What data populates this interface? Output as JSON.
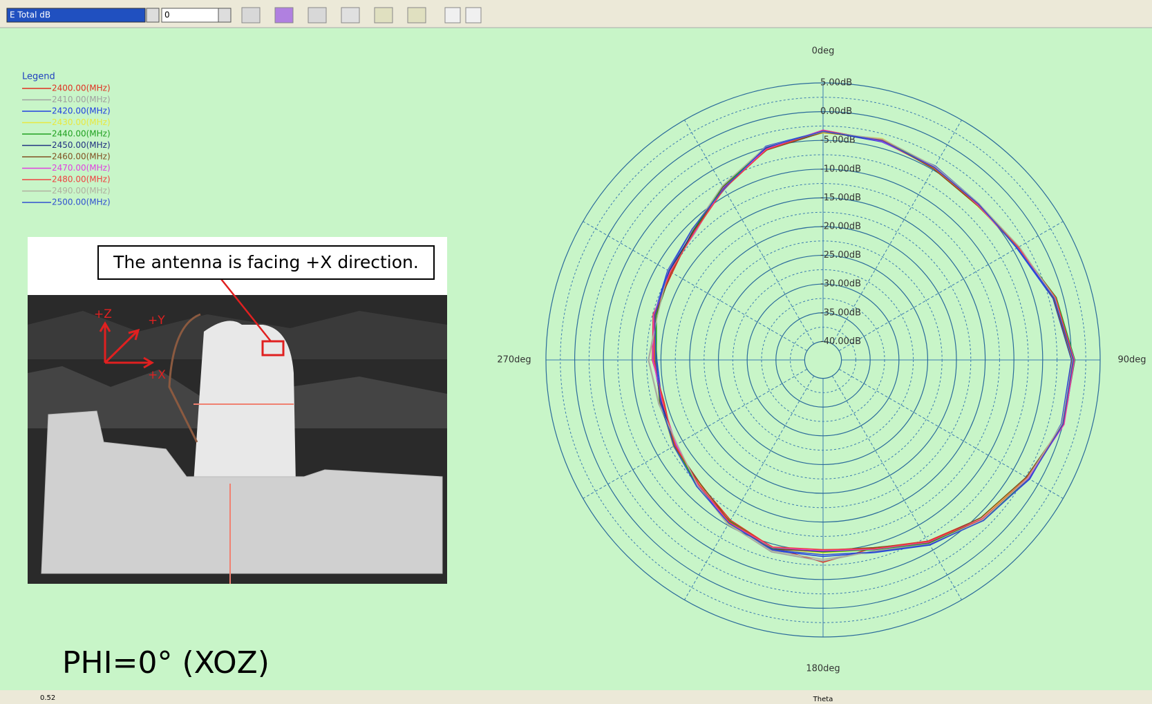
{
  "toolbar": {
    "field": "E Total dB",
    "value": "0"
  },
  "legend_title": "Legend",
  "chart_data": {
    "type": "polar",
    "theta": [
      0,
      15,
      30,
      45,
      60,
      75,
      90,
      105,
      120,
      135,
      150,
      165,
      180,
      195,
      210,
      225,
      240,
      255,
      270,
      285,
      300,
      315,
      330,
      345
    ],
    "thetaticks": [
      {
        "value": 0,
        "label": "0deg"
      },
      {
        "value": 90,
        "label": "90deg"
      },
      {
        "value": 180,
        "label": "180deg"
      },
      {
        "value": 270,
        "label": "270deg"
      }
    ],
    "theta_label": "Theta",
    "rlim": [
      -43.2,
      5
    ],
    "rticks": [
      {
        "value": 5,
        "label": "5.00dB"
      },
      {
        "value": 0,
        "label": "0.00dB"
      },
      {
        "value": -5,
        "label": "-5.00dB"
      },
      {
        "value": -10,
        "label": "-10.00dB"
      },
      {
        "value": -15,
        "label": "-15.00dB"
      },
      {
        "value": -20,
        "label": "-20.00dB"
      },
      {
        "value": -25,
        "label": "-25.00dB"
      },
      {
        "value": -30,
        "label": "-30.00dB"
      },
      {
        "value": -35,
        "label": "-35.00dB"
      },
      {
        "value": -40,
        "label": "-40.00dB"
      }
    ],
    "series": [
      {
        "name": "2400.00(MHz)",
        "color": "#e03020",
        "values": [
          -3.2,
          -3.8,
          -4.6,
          -5.2,
          -4.1,
          -1.3,
          0.5,
          0.1,
          -2.2,
          -4.3,
          -6.8,
          -9.3,
          -8.0,
          -9.4,
          -11.0,
          -12.8,
          -13.2,
          -14.6,
          -13.5,
          -12.6,
          -12.9,
          -11.2,
          -8.8,
          -5.3
        ]
      },
      {
        "name": "2410.00(MHz)",
        "color": "#a0a0a0",
        "values": [
          -3.6,
          -3.4,
          -4.4,
          -5.1,
          -3.8,
          -1.6,
          0.2,
          -0.2,
          -2.0,
          -4.1,
          -6.3,
          -8.8,
          -8.2,
          -8.6,
          -10.2,
          -12.4,
          -13.8,
          -13.6,
          -12.8,
          -13.3,
          -12.2,
          -11.8,
          -8.3,
          -5.2
        ]
      },
      {
        "name": "2420.00(MHz)",
        "color": "#2040e0",
        "values": [
          -3.4,
          -3.9,
          -4.2,
          -4.8,
          -4.3,
          -1.8,
          0.0,
          -0.3,
          -1.7,
          -3.8,
          -6.0,
          -8.5,
          -9.0,
          -8.9,
          -10.6,
          -12.2,
          -13.5,
          -14.2,
          -14.3,
          -12.8,
          -12.0,
          -11.0,
          -8.9,
          -4.7
        ]
      },
      {
        "name": "2430.00(MHz)",
        "color": "#e8e840",
        "values": [
          -3.7,
          -3.3,
          -4.7,
          -5.3,
          -3.9,
          -1.4,
          0.4,
          0.2,
          -2.3,
          -4.2,
          -6.6,
          -9.1,
          -9.6,
          -9.2,
          -10.3,
          -12.7,
          -13.1,
          -14.0,
          -13.9,
          -13.1,
          -12.4,
          -11.6,
          -8.6,
          -4.9
        ]
      },
      {
        "name": "2440.00(MHz)",
        "color": "#20a020",
        "values": [
          -3.3,
          -3.6,
          -4.3,
          -4.9,
          -4.0,
          -1.2,
          0.6,
          0.1,
          -1.9,
          -3.9,
          -6.4,
          -9.0,
          -9.8,
          -9.3,
          -10.8,
          -12.3,
          -13.4,
          -13.8,
          -14.2,
          -13.2,
          -12.6,
          -11.3,
          -8.4,
          -5.0
        ]
      },
      {
        "name": "2450.00(MHz)",
        "color": "#203080",
        "values": [
          -3.5,
          -3.7,
          -4.5,
          -5.0,
          -4.2,
          -1.5,
          0.3,
          -0.1,
          -2.1,
          -4.0,
          -6.7,
          -9.2,
          -9.9,
          -9.1,
          -10.4,
          -12.6,
          -13.6,
          -14.1,
          -13.7,
          -12.9,
          -12.3,
          -11.4,
          -8.7,
          -5.1
        ]
      },
      {
        "name": "2460.00(MHz)",
        "color": "#805020",
        "values": [
          -3.6,
          -3.5,
          -4.8,
          -5.2,
          -3.9,
          -1.7,
          0.1,
          0.0,
          -2.4,
          -4.4,
          -6.5,
          -9.4,
          -10.1,
          -9.0,
          -10.7,
          -12.9,
          -13.3,
          -13.9,
          -14.0,
          -13.0,
          -12.7,
          -11.5,
          -8.5,
          -5.4
        ]
      },
      {
        "name": "2470.00(MHz)",
        "color": "#e040e0",
        "values": [
          -3.2,
          -3.8,
          -4.4,
          -5.1,
          -4.1,
          -1.4,
          0.5,
          0.2,
          -2.0,
          -4.1,
          -6.6,
          -9.1,
          -10.0,
          -9.4,
          -10.5,
          -12.5,
          -13.7,
          -14.3,
          -13.6,
          -12.7,
          -12.5,
          -11.7,
          -8.6,
          -5.2
        ]
      },
      {
        "name": "2480.00(MHz)",
        "color": "#f04040",
        "values": [
          -3.3,
          -3.6,
          -4.6,
          -5.0,
          -4.0,
          -1.3,
          0.4,
          0.1,
          -2.2,
          -4.0,
          -6.7,
          -9.2,
          -10.2,
          -9.5,
          -10.6,
          -12.6,
          -13.5,
          -14.4,
          -13.8,
          -12.8,
          -12.6,
          -11.6,
          -8.8,
          -5.3
        ]
      },
      {
        "name": "2490.00(MHz)",
        "color": "#b0b0a0",
        "values": [
          -3.5,
          -3.4,
          -4.3,
          -4.8,
          -3.8,
          -1.5,
          0.2,
          -0.2,
          -2.1,
          -3.9,
          -6.2,
          -8.7,
          -8.5,
          -8.8,
          -10.1,
          -12.3,
          -13.9,
          -13.7,
          -12.9,
          -13.4,
          -12.1,
          -11.1,
          -8.2,
          -4.8
        ]
      },
      {
        "name": "2500.00(MHz)",
        "color": "#3050d0",
        "values": [
          -3.4,
          -3.7,
          -4.5,
          -4.9,
          -4.2,
          -1.6,
          0.3,
          0.0,
          -1.8,
          -3.7,
          -6.1,
          -8.6,
          -9.3,
          -9.0,
          -10.4,
          -12.1,
          -13.2,
          -14.0,
          -14.1,
          -12.9,
          -12.2,
          -11.0,
          -8.7,
          -4.9
        ]
      }
    ]
  },
  "photo": {
    "annotation": "The antenna is facing +X direction.",
    "axes": [
      "+Z",
      "+Y",
      "+X"
    ]
  },
  "caption": "PHI=0° (XOZ)",
  "status": {
    "value": "0.52"
  }
}
